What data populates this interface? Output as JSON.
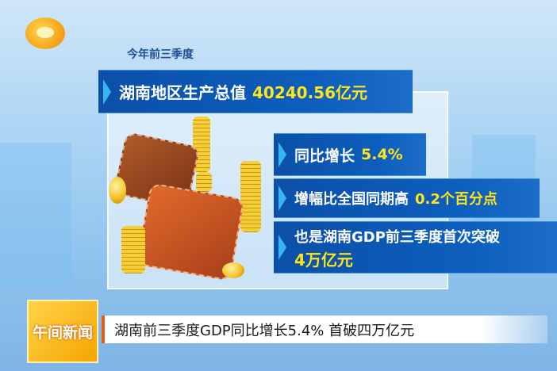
{
  "header": {
    "subtitle": "今年前三季度"
  },
  "facts": [
    {
      "label": "湖南地区生产总值",
      "value": "40240.56亿元"
    },
    {
      "label": "同比增长",
      "value": "5.4%"
    },
    {
      "label": "增幅比全国同期高",
      "value": "0.2个百分点"
    },
    {
      "label": "也是湖南GDP前三季度首次突破",
      "value": "4万亿元"
    }
  ],
  "ticker": {
    "program": "午间新闻",
    "headline": "湖南前三季度GDP同比增长5.4% 首破四万亿元"
  },
  "colors": {
    "banner": "#0b4fa8",
    "highlight": "#ffe51a",
    "program_tag": "#f5a500"
  }
}
